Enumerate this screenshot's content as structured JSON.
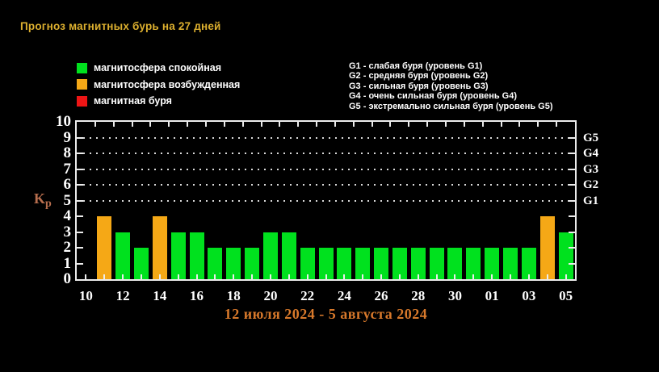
{
  "title": "Прогноз магнитных бурь на 27 дней",
  "colors": {
    "quiet": "#00e11e",
    "excited": "#f5a816",
    "storm": "#ee1515",
    "title": "#ddb02f",
    "caption": "#d8792b",
    "kp_label": "#b76e4e",
    "axis": "#ececec",
    "tick_text": "#ffffff",
    "background": "#000000"
  },
  "legend": {
    "items": [
      {
        "label": "магнитосфера спокойная",
        "status": "quiet"
      },
      {
        "label": "магнитосфера возбужденная",
        "status": "excited"
      },
      {
        "label": "магнитная буря",
        "status": "storm"
      }
    ]
  },
  "storm_levels_legend": {
    "lines": [
      "G1 - слабая буря (уровень G1)",
      "G2 - средняя буря (уровень G2)",
      "G3 - сильная буря (уровень G3)",
      "G4 - очень сильная буря (уровень G4)",
      "G5 - экстремально сильная буря (уровень G5)"
    ]
  },
  "chart_data": {
    "type": "bar",
    "title": "Прогноз магнитных бурь на 27 дней",
    "xlabel": "",
    "ylabel": "Kp",
    "ylim": [
      0,
      10
    ],
    "yticks": [
      0,
      1,
      2,
      3,
      4,
      5,
      6,
      7,
      8,
      9,
      10
    ],
    "grid_kp": [
      5,
      6,
      7,
      8,
      9
    ],
    "grid_style": "dotted-white-horizontal",
    "legend_position": "top",
    "right_axis_labels": [
      {
        "kp": 5,
        "label": "G1"
      },
      {
        "kp": 6,
        "label": "G2"
      },
      {
        "kp": 7,
        "label": "G3"
      },
      {
        "kp": 8,
        "label": "G4"
      },
      {
        "kp": 9,
        "label": "G5"
      }
    ],
    "x_ticks": [
      {
        "slot": 0,
        "label": "10"
      },
      {
        "slot": 2,
        "label": "12"
      },
      {
        "slot": 4,
        "label": "14"
      },
      {
        "slot": 6,
        "label": "16"
      },
      {
        "slot": 8,
        "label": "18"
      },
      {
        "slot": 10,
        "label": "20"
      },
      {
        "slot": 12,
        "label": "22"
      },
      {
        "slot": 14,
        "label": "24"
      },
      {
        "slot": 16,
        "label": "26"
      },
      {
        "slot": 18,
        "label": "28"
      },
      {
        "slot": 20,
        "label": "30"
      },
      {
        "slot": 22,
        "label": "01"
      },
      {
        "slot": 24,
        "label": "03"
      },
      {
        "slot": 26,
        "label": "05"
      }
    ],
    "bars": [
      {
        "day": "11",
        "kp": 4,
        "status": "excited"
      },
      {
        "day": "12",
        "kp": 3,
        "status": "quiet"
      },
      {
        "day": "13",
        "kp": 2,
        "status": "quiet"
      },
      {
        "day": "14",
        "kp": 4,
        "status": "excited"
      },
      {
        "day": "15",
        "kp": 3,
        "status": "quiet"
      },
      {
        "day": "16",
        "kp": 3,
        "status": "quiet"
      },
      {
        "day": "17",
        "kp": 2,
        "status": "quiet"
      },
      {
        "day": "18",
        "kp": 2,
        "status": "quiet"
      },
      {
        "day": "19",
        "kp": 2,
        "status": "quiet"
      },
      {
        "day": "20",
        "kp": 3,
        "status": "quiet"
      },
      {
        "day": "21",
        "kp": 3,
        "status": "quiet"
      },
      {
        "day": "22",
        "kp": 2,
        "status": "quiet"
      },
      {
        "day": "23",
        "kp": 2,
        "status": "quiet"
      },
      {
        "day": "24",
        "kp": 2,
        "status": "quiet"
      },
      {
        "day": "25",
        "kp": 2,
        "status": "quiet"
      },
      {
        "day": "26",
        "kp": 2,
        "status": "quiet"
      },
      {
        "day": "27",
        "kp": 2,
        "status": "quiet"
      },
      {
        "day": "28",
        "kp": 2,
        "status": "quiet"
      },
      {
        "day": "29",
        "kp": 2,
        "status": "quiet"
      },
      {
        "day": "30",
        "kp": 2,
        "status": "quiet"
      },
      {
        "day": "31",
        "kp": 2,
        "status": "quiet"
      },
      {
        "day": "01",
        "kp": 2,
        "status": "quiet"
      },
      {
        "day": "02",
        "kp": 2,
        "status": "quiet"
      },
      {
        "day": "03",
        "kp": 2,
        "status": "quiet"
      },
      {
        "day": "04",
        "kp": 4,
        "status": "excited"
      },
      {
        "day": "05",
        "kp": 3,
        "status": "quiet"
      }
    ],
    "caption": "12 июля 2024 - 5 августа 2024"
  }
}
